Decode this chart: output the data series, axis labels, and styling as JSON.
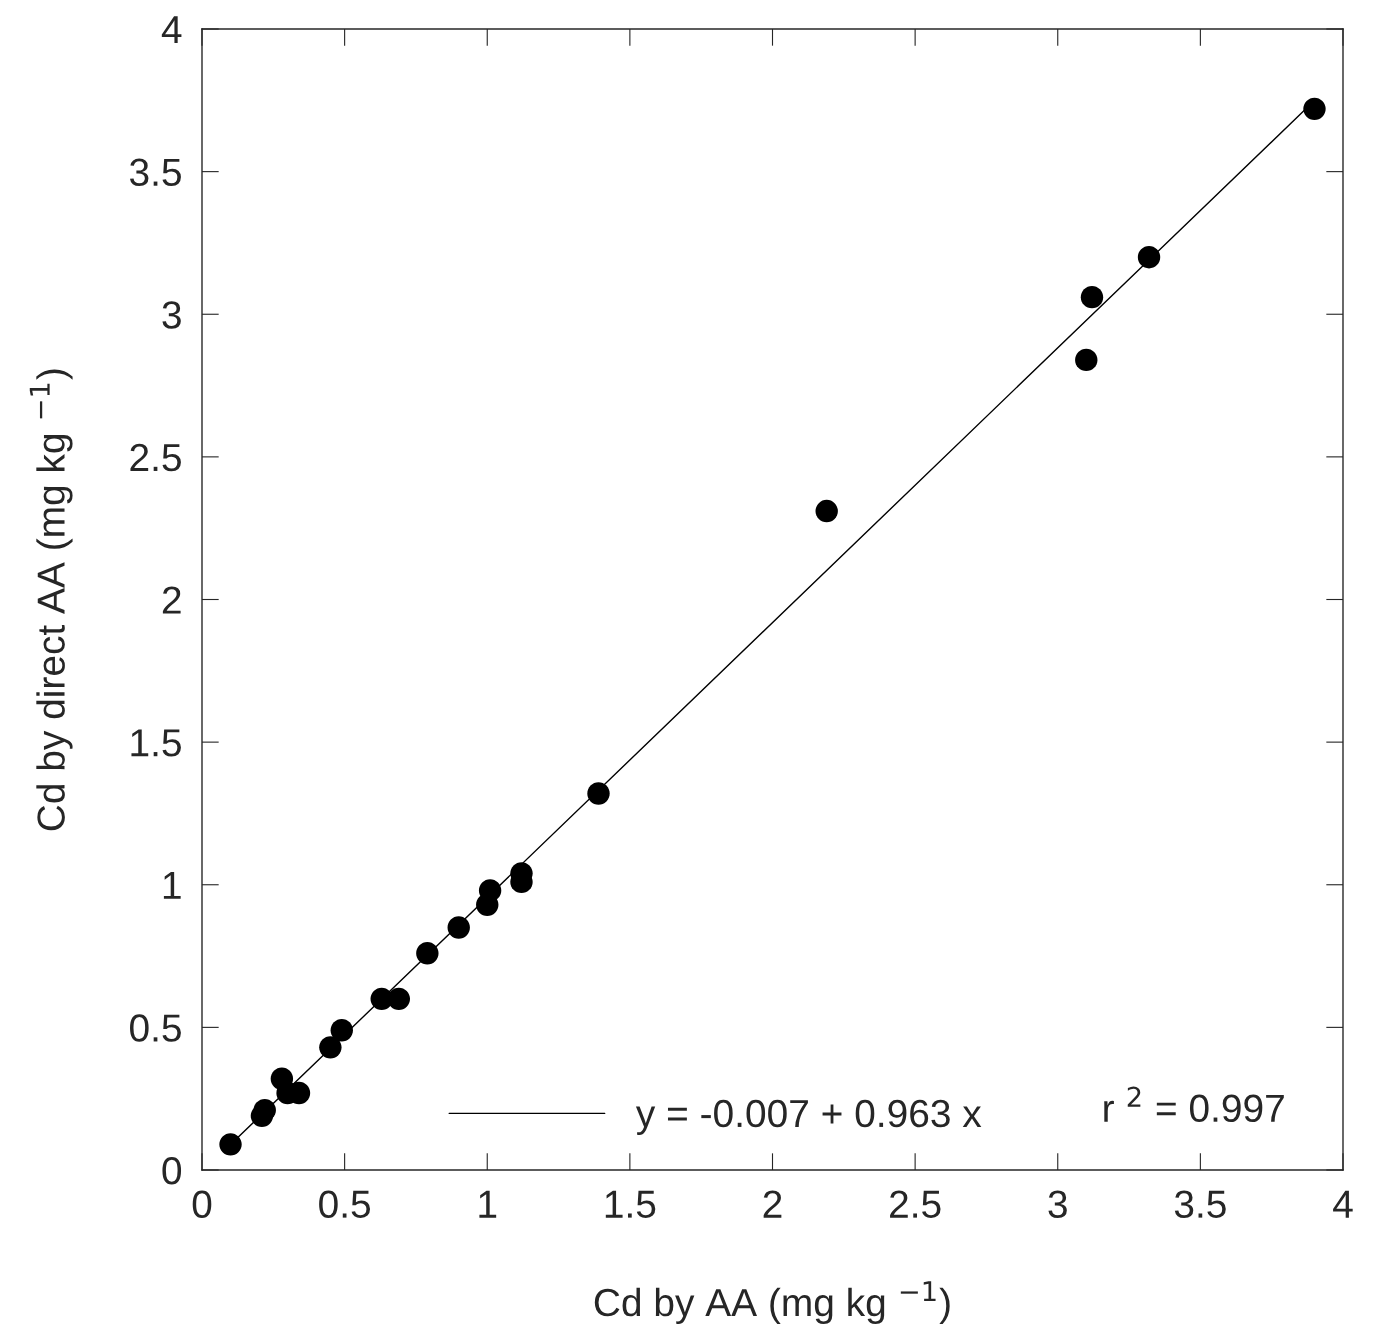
{
  "chart_data": {
    "type": "scatter",
    "xlabel": "Cd by AA (mg kg $^{−1}$)",
    "ylabel": "Cd by direct AA (mg kg $^{−1}$)",
    "x": [
      0.1,
      0.21,
      0.22,
      0.28,
      0.3,
      0.34,
      0.45,
      0.49,
      0.63,
      0.69,
      0.79,
      0.9,
      1.0,
      1.01,
      1.12,
      1.12,
      1.39,
      2.19,
      3.1,
      3.12,
      3.32,
      3.9
    ],
    "series": [
      {
        "color": "#000000",
        "marker": "circle",
        "values": [
          0.09,
          0.19,
          0.21,
          0.32,
          0.27,
          0.27,
          0.43,
          0.49,
          0.6,
          0.6,
          0.76,
          0.85,
          0.93,
          0.98,
          1.04,
          1.01,
          1.32,
          2.31,
          2.84,
          3.06,
          3.2,
          3.72
        ]
      },
      {
        "type": "line",
        "name": "y = -0.007 + 0.963 x",
        "color": "#000000",
        "marker": "none",
        "line_style": "solid",
        "x": [
          0.1,
          3.9
        ],
        "values": [
          0.089,
          3.749
        ]
      }
    ],
    "annotations": [
      "r $^{2}$ = 0.997"
    ],
    "xlim": [
      0,
      4
    ],
    "ylim": [
      0,
      4
    ],
    "xticks": [
      0,
      0.5,
      1,
      1.5,
      2,
      2.5,
      3,
      3.5,
      4
    ],
    "yticks": [
      0,
      0.5,
      1,
      1.5,
      2,
      2.5,
      3,
      3.5,
      4
    ],
    "grid": false,
    "legend": "bottom"
  }
}
